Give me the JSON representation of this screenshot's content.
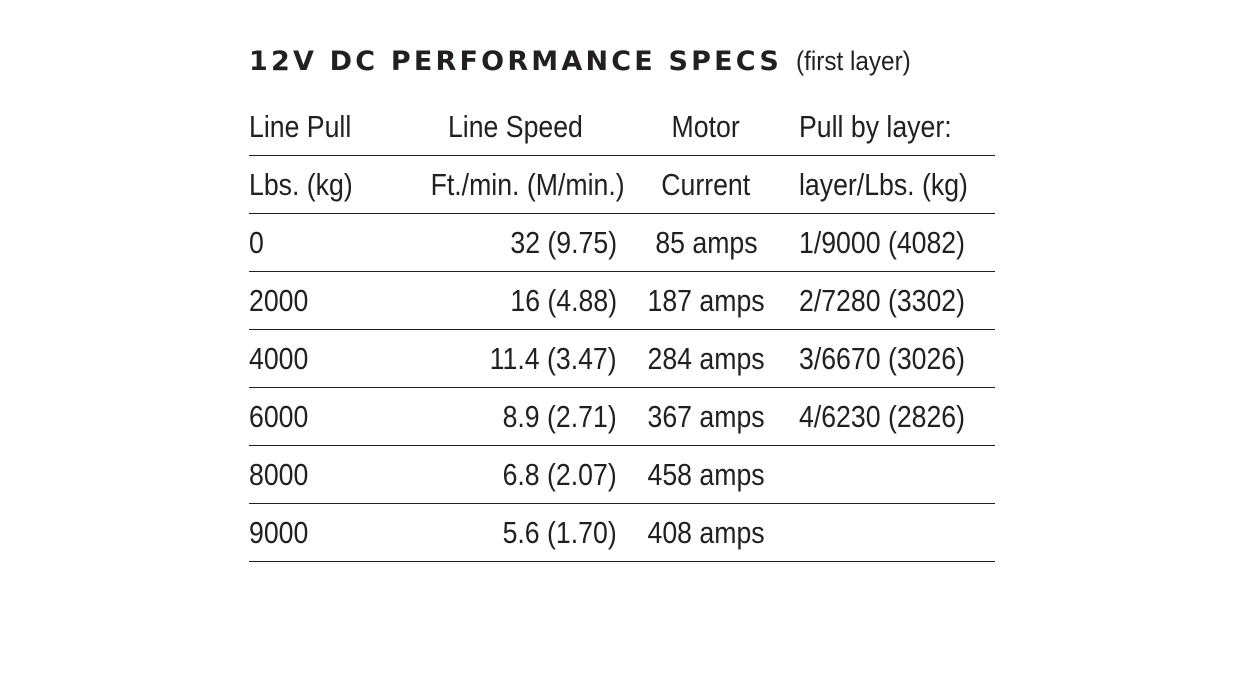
{
  "title": {
    "main": "12V DC PERFORMANCE SPECS",
    "sub": "(first layer)"
  },
  "header_row_1": [
    "Line Pull",
    "Line Speed",
    "Motor",
    "Pull by layer:"
  ],
  "header_row_2": [
    "Lbs. (kg)",
    "Ft./min. (M/min.)",
    "Current",
    "layer/Lbs. (kg)"
  ],
  "rows": [
    [
      "0",
      "32 (9.75)",
      "85 amps",
      "1/9000 (4082)"
    ],
    [
      "2000",
      "16 (4.88)",
      "187 amps",
      "2/7280 (3302)"
    ],
    [
      "4000",
      "11.4 (3.47)",
      "284 amps",
      "3/6670 (3026)"
    ],
    [
      "6000",
      "8.9 (2.71)",
      "367 amps",
      "4/6230 (2826)"
    ],
    [
      "8000",
      "6.8 (2.07)",
      "458 amps",
      ""
    ],
    [
      "9000",
      "5.6 (1.70)",
      "408 amps",
      ""
    ]
  ]
}
